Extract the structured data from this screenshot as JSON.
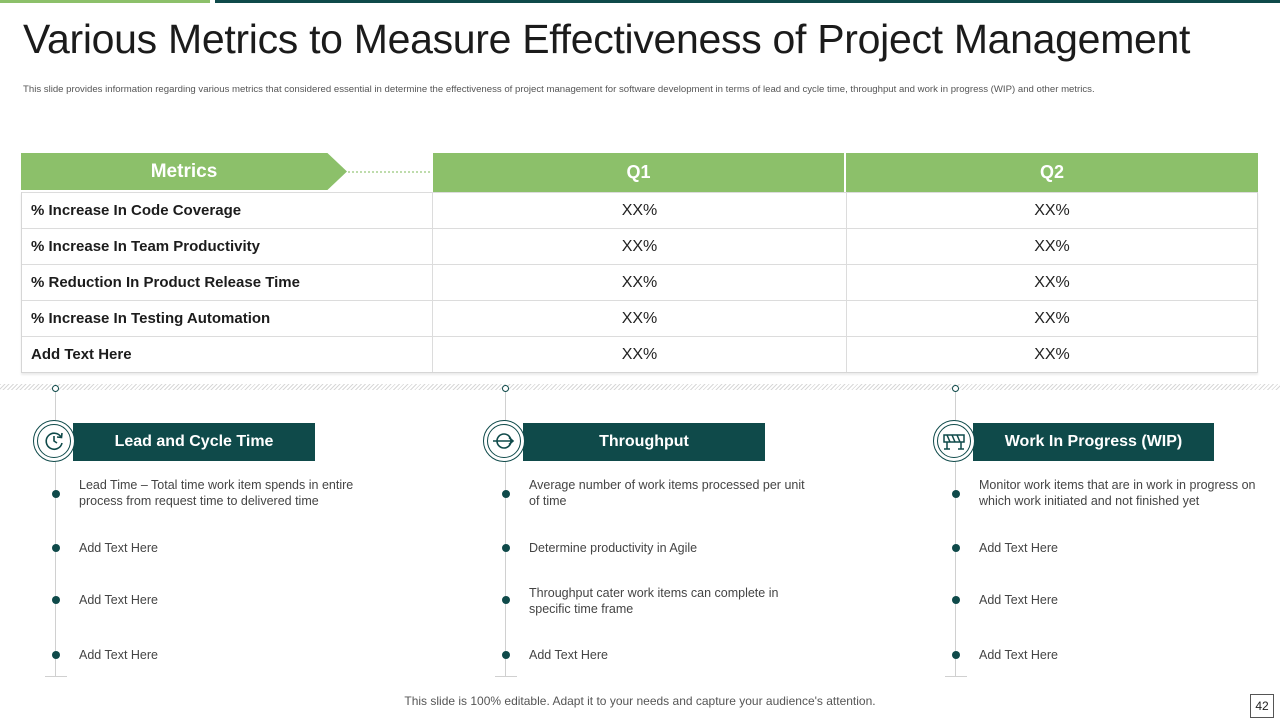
{
  "slide": {
    "title": "Various Metrics to Measure Effectiveness of Project Management",
    "subtitle": "This slide provides information regarding various metrics that considered essential in determine the effectiveness of project management for software development in terms of lead and cycle time, throughput and work in progress (WIP) and other metrics.",
    "footer": "This slide is 100% editable. Adapt it to your needs and capture your audience's attention.",
    "page_number": "42"
  },
  "colors": {
    "green": "#8cc06a",
    "dark_teal": "#0f4a4a"
  },
  "table": {
    "headers": [
      "Metrics",
      "Q1",
      "Q2"
    ],
    "rows": [
      [
        "% Increase In Code Coverage",
        "XX%",
        "XX%"
      ],
      [
        "% Increase In Team Productivity",
        "XX%",
        "XX%"
      ],
      [
        "% Reduction In Product Release Time",
        "XX%",
        "XX%"
      ],
      [
        "% Increase In Testing Automation",
        "XX%",
        "XX%"
      ],
      [
        "Add Text Here",
        "XX%",
        "XX%"
      ]
    ]
  },
  "columns": [
    {
      "title": "Lead and Cycle Time",
      "icon": "refresh-clock-icon",
      "items": [
        "Lead Time – Total time work item spends in entire process from request time to delivered  time",
        "Add Text Here",
        "Add Text Here",
        "Add Text Here"
      ]
    },
    {
      "title": "Throughput",
      "icon": "circle-arrow-icon",
      "items": [
        "Average  number  of work items processed per unit of time",
        "Determine  productivity  in Agile",
        "Throughput  cater work items can complete in specific time frame",
        "Add Text Here"
      ]
    },
    {
      "title": "Work In Progress (WIP)",
      "icon": "barrier-icon",
      "items": [
        "Monitor work items that are in work in progress on which work initiated and not finished yet",
        "Add Text Here",
        "Add Text Here",
        "Add Text Here"
      ]
    }
  ]
}
